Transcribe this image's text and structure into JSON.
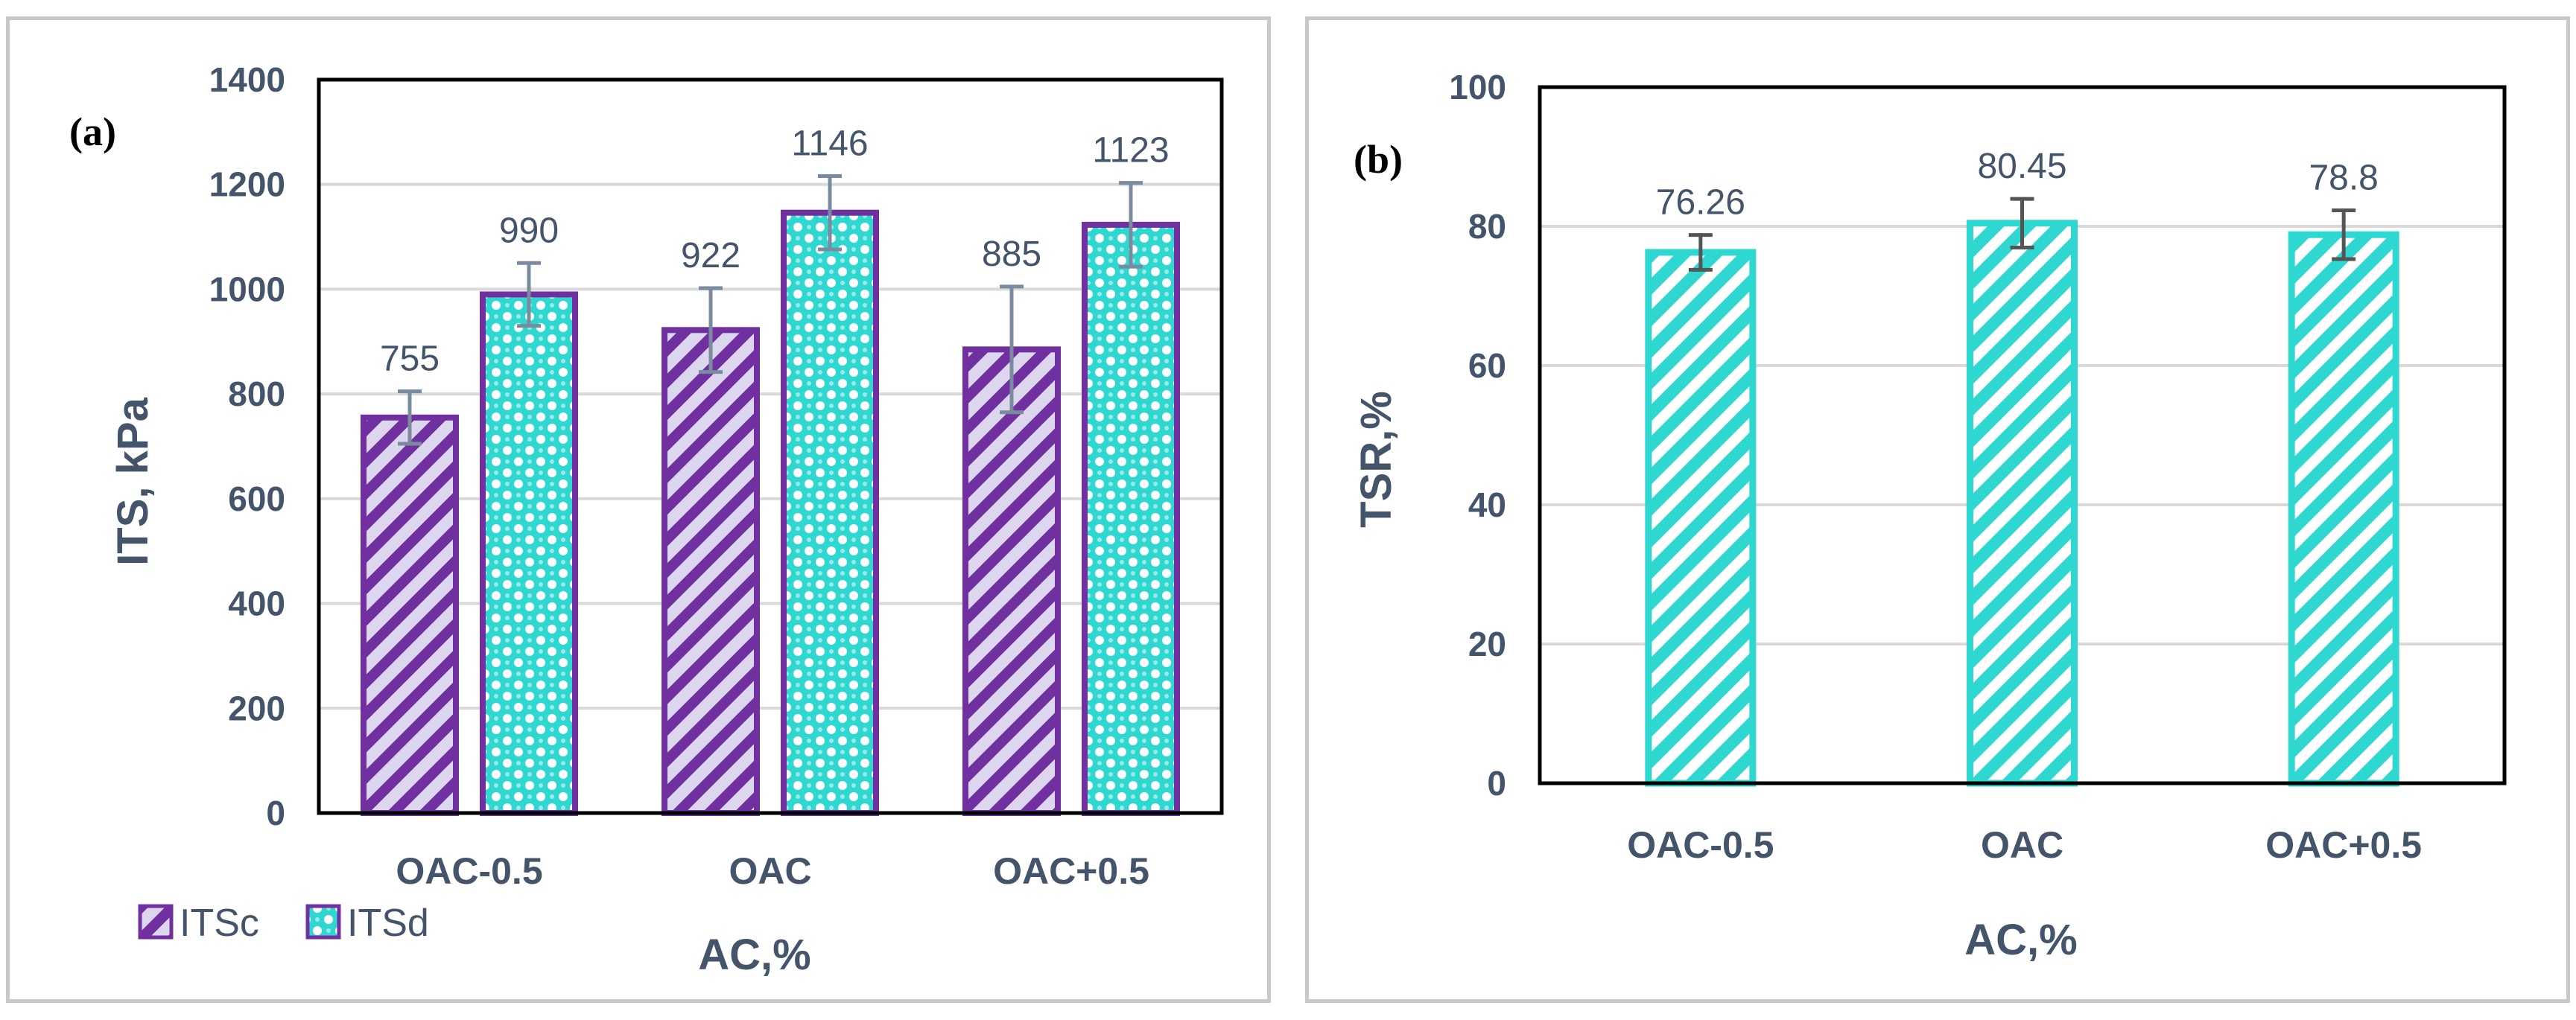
{
  "chart_data": [
    {
      "type": "bar",
      "panel_label": "(a)",
      "categories": [
        "OAC-0.5",
        "OAC",
        "OAC+0.5"
      ],
      "series": [
        {
          "name": "ITSc",
          "values": [
            755,
            922,
            885
          ],
          "error": [
            50,
            80,
            120
          ],
          "color": "#7030a0",
          "pattern": "diagonal-stripes"
        },
        {
          "name": "ITSd",
          "values": [
            990,
            1146,
            1123
          ],
          "error": [
            60,
            70,
            80
          ],
          "color": "#7030a0",
          "pattern": "cyan-dots"
        }
      ],
      "data_labels": [
        [
          "755",
          "922",
          "885"
        ],
        [
          "990",
          "1146",
          "1123"
        ]
      ],
      "xlabel": "AC,%",
      "ylabel": "ITS, kPa",
      "ylim": [
        0,
        1400
      ],
      "yticks": [
        "0",
        "200",
        "400",
        "600",
        "800",
        "1000",
        "1200",
        "1400"
      ],
      "grid": true,
      "legend": "bottom-left"
    },
    {
      "type": "bar",
      "panel_label": "(b)",
      "categories": [
        "OAC-0.5",
        "OAC",
        "OAC+0.5"
      ],
      "series": [
        {
          "name": "TSR",
          "values": [
            76.26,
            80.45,
            78.8
          ],
          "error": [
            2.5,
            3.5,
            3.5
          ],
          "color": "#2ed8d0",
          "pattern": "diagonal-stripes"
        }
      ],
      "data_labels": [
        [
          "76.26",
          "80.45",
          "78.8"
        ]
      ],
      "xlabel": "AC,%",
      "ylabel": "TSR,%",
      "ylim": [
        0,
        100
      ],
      "yticks": [
        "0",
        "20",
        "40",
        "60",
        "80",
        "100"
      ],
      "grid": true,
      "legend": "none"
    }
  ]
}
